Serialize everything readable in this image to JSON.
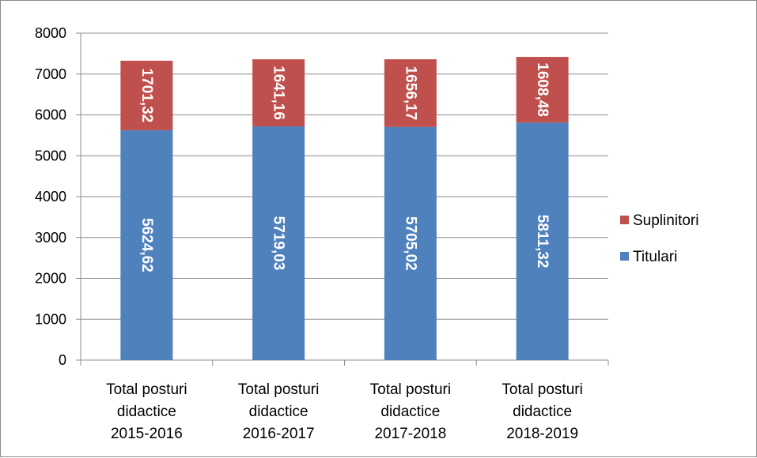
{
  "chart_data": {
    "type": "bar",
    "stacked": true,
    "categories": [
      "Total posturi didactice 2015-2016",
      "Total posturi didactice 2016-2017",
      "Total posturi didactice 2017-2018",
      "Total posturi didactice 2018-2019"
    ],
    "category_lines": [
      [
        "Total posturi",
        "didactice",
        "2015-2016"
      ],
      [
        "Total posturi",
        "didactice",
        "2016-2017"
      ],
      [
        "Total posturi",
        "didactice",
        "2017-2018"
      ],
      [
        "Total posturi",
        "didactice",
        "2018-2019"
      ]
    ],
    "series": [
      {
        "name": "Titulari",
        "color": "#4f81bd",
        "values": [
          5624.62,
          5719.03,
          5705.02,
          5811.32
        ],
        "labels": [
          "5624,62",
          "5719,03",
          "5705,02",
          "5811,32"
        ]
      },
      {
        "name": "Suplinitori",
        "color": "#c0504d",
        "values": [
          1701.32,
          1641.16,
          1656.17,
          1608.48
        ],
        "labels": [
          "1701,32",
          "1641,16",
          "1656,17",
          "1608,48"
        ]
      }
    ],
    "legend_order": [
      "Suplinitori",
      "Titulari"
    ],
    "legend_position": "right",
    "ylim": [
      0,
      8000
    ],
    "yticks": [
      0,
      1000,
      2000,
      3000,
      4000,
      5000,
      6000,
      7000,
      8000
    ],
    "grid": true,
    "title": "",
    "xlabel": "",
    "ylabel": ""
  }
}
